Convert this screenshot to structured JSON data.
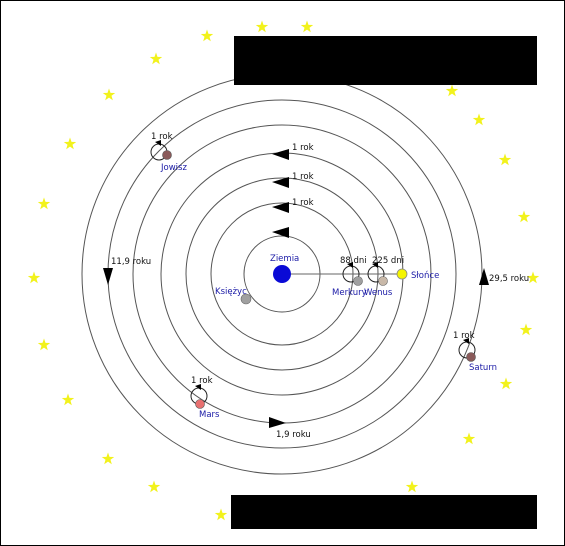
{
  "bodies": {
    "earth": {
      "name": "Ziemia",
      "color": "#0a0ad6"
    },
    "moon": {
      "name": "Księżyc",
      "color": "#a0a0a0"
    },
    "mercury": {
      "name": "Merkury",
      "period": "88 dni",
      "color": "#a0a0a0"
    },
    "venus": {
      "name": "Wenus",
      "period": "225 dni",
      "color": "#c8b8a8"
    },
    "sun": {
      "name": "Słońce",
      "color": "#f5f500"
    },
    "mars": {
      "name": "Mars",
      "period": "1 rok",
      "color": "#e87070"
    },
    "jupiter": {
      "name": "Jowisz",
      "period": "1 rok",
      "color": "#8a5a5a"
    },
    "saturn": {
      "name": "Saturn",
      "period": "1 rok",
      "color": "#8a5a5a"
    }
  },
  "orbit_labels": {
    "mercury_orbit": "1 rok",
    "venus_orbit": "1 rok",
    "sun_orbit": "1 rok",
    "mars_orbit": "1,9 roku",
    "jupiter_orbit": "11,9 roku",
    "saturn_orbit": "29,5 roku"
  },
  "colors": {
    "star": "#f2f21c",
    "redaction": "#000000"
  }
}
